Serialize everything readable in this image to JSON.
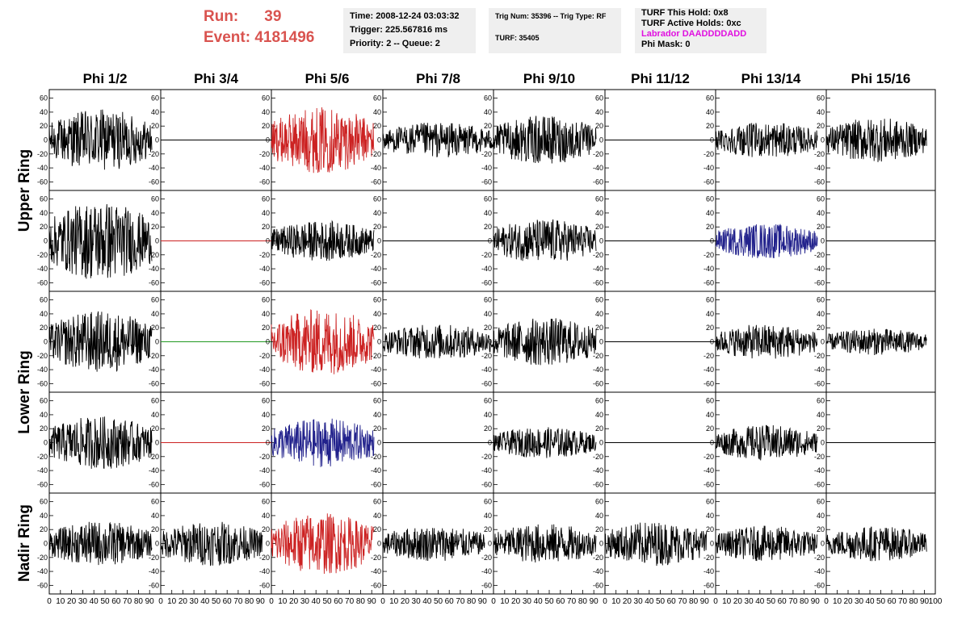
{
  "header": {
    "run_label": "Run:",
    "run_value": "39",
    "event_label": "Event:",
    "event_value": "4181496",
    "time": "Time: 2008-12-24 03:03:32",
    "trigger": "Trigger: 225.567816 ms",
    "priority": "Priority: 2 -- Queue: 2",
    "trig_num": "Trig Num: 35396 -- Trig Type: RF",
    "turf": "TURF: 35405",
    "turf_hold": "TURF This Hold: 0x8",
    "turf_active": "TURF Active Holds: 0xc",
    "labrador": "Labrador DAADDDDADD",
    "phi_mask": "Phi Mask: 0"
  },
  "colors": {
    "header_red": "#d9534f",
    "magenta": "#e010e0",
    "trace_black": "#000000",
    "trace_red": "#cc2222",
    "trace_blue": "#22228c",
    "trace_green": "#229922"
  },
  "chart_data": {
    "type": "line",
    "columns": [
      "Phi 1/2",
      "Phi 3/4",
      "Phi 5/6",
      "Phi 7/8",
      "Phi 9/10",
      "Phi 11/12",
      "Phi 13/14",
      "Phi 15/16"
    ],
    "rows": [
      "Upper Ring",
      "Upper Ring",
      "Lower Ring",
      "Lower Ring",
      "Nadir Ring"
    ],
    "row_labels": [
      "Upper Ring",
      "Lower Ring",
      "Nadir Ring"
    ],
    "xlim": [
      0,
      100
    ],
    "ylim": [
      -70,
      70
    ],
    "x_ticks": [
      "0",
      "10",
      "20",
      "30",
      "40",
      "50",
      "60",
      "70",
      "80",
      "90",
      "100"
    ],
    "y_ticks": [
      "60",
      "40",
      "20",
      "0",
      "-20",
      "-40",
      "-60"
    ],
    "panels": [
      [
        {
          "c": "black",
          "a": 28,
          "l": 92
        },
        {
          "c": "black",
          "a": 0,
          "l": 100
        },
        {
          "c": "red",
          "a": 30,
          "l": 92
        },
        {
          "c": "black",
          "a": 16,
          "l": 100
        },
        {
          "c": "black",
          "a": 22,
          "l": 92
        },
        {
          "c": "black",
          "a": 0,
          "l": 100
        },
        {
          "c": "black",
          "a": 16,
          "l": 92
        },
        {
          "c": "black",
          "a": 20,
          "l": 92
        }
      ],
      [
        {
          "c": "black",
          "a": 36,
          "l": 92
        },
        {
          "c": "red",
          "a": 0,
          "l": 100
        },
        {
          "c": "black",
          "a": 18,
          "l": 92
        },
        {
          "c": "black",
          "a": 0,
          "l": 100
        },
        {
          "c": "black",
          "a": 20,
          "l": 92
        },
        {
          "c": "black",
          "a": 0,
          "l": 100
        },
        {
          "c": "blue",
          "a": 16,
          "l": 92
        },
        {
          "c": "black",
          "a": 0,
          "l": 100
        }
      ],
      [
        {
          "c": "black",
          "a": 28,
          "l": 92
        },
        {
          "c": "green",
          "a": 0,
          "l": 100
        },
        {
          "c": "red",
          "a": 30,
          "l": 92
        },
        {
          "c": "black",
          "a": 16,
          "l": 100
        },
        {
          "c": "black",
          "a": 22,
          "l": 92
        },
        {
          "c": "black",
          "a": 0,
          "l": 100
        },
        {
          "c": "black",
          "a": 16,
          "l": 92
        },
        {
          "c": "black",
          "a": 12,
          "l": 92
        }
      ],
      [
        {
          "c": "black",
          "a": 24,
          "l": 92
        },
        {
          "c": "red",
          "a": 0,
          "l": 100
        },
        {
          "c": "blue",
          "a": 22,
          "l": 92
        },
        {
          "c": "black",
          "a": 0,
          "l": 100
        },
        {
          "c": "black",
          "a": 14,
          "l": 92
        },
        {
          "c": "black",
          "a": 0,
          "l": 100
        },
        {
          "c": "black",
          "a": 16,
          "l": 92
        },
        {
          "c": "black",
          "a": 0,
          "l": 100
        }
      ],
      [
        {
          "c": "black",
          "a": 20,
          "l": 92
        },
        {
          "c": "black",
          "a": 20,
          "l": 92
        },
        {
          "c": "red",
          "a": 28,
          "l": 92
        },
        {
          "c": "black",
          "a": 16,
          "l": 92
        },
        {
          "c": "black",
          "a": 18,
          "l": 92
        },
        {
          "c": "black",
          "a": 20,
          "l": 92
        },
        {
          "c": "black",
          "a": 16,
          "l": 92
        },
        {
          "c": "black",
          "a": 16,
          "l": 92
        }
      ]
    ]
  }
}
